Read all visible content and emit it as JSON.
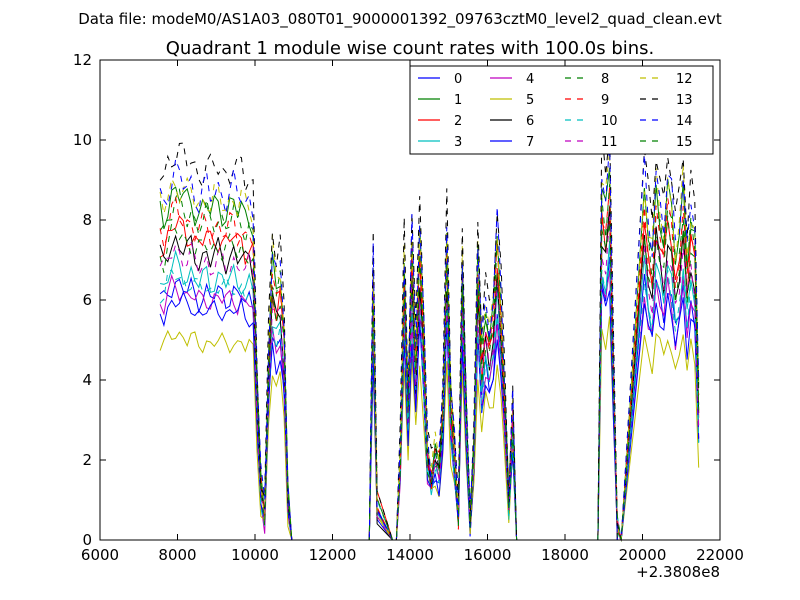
{
  "chart_data": {
    "type": "line",
    "suptitle": "Data file: modeM0/AS1A03_080T01_9000001392_09763cztM0_level2_quad_clean.evt",
    "title": "Quadrant 1 module wise count rates with 100.0s bins.",
    "xlabel": "",
    "ylabel": "",
    "xlim": [
      6000,
      22000
    ],
    "ylim": [
      0,
      12
    ],
    "x_offset_label": "+2.3808e8",
    "xticks": [
      "6000",
      "8000",
      "10000",
      "12000",
      "14000",
      "16000",
      "18000",
      "20000",
      "22000"
    ],
    "yticks": [
      "0",
      "2",
      "4",
      "6",
      "8",
      "10",
      "12"
    ],
    "legend_position": "upper-right",
    "legend_columns": 4,
    "x": [
      7550,
      7650,
      7750,
      7850,
      7950,
      8050,
      8150,
      8250,
      8350,
      8450,
      8550,
      8650,
      8750,
      8850,
      8950,
      9050,
      9150,
      9250,
      9350,
      9450,
      9550,
      9650,
      9750,
      9850,
      9950,
      10050,
      10150,
      10250,
      10350,
      10450,
      10550,
      10650,
      10750,
      10850,
      10950,
      11050,
      11150,
      12950,
      13050,
      13150,
      13550,
      13650,
      13750,
      13850,
      13950,
      14050,
      14150,
      14250,
      14350,
      14450,
      14550,
      14650,
      14750,
      14850,
      14950,
      15050,
      15150,
      15250,
      15350,
      15450,
      15550,
      15650,
      15750,
      15850,
      15950,
      16050,
      16150,
      16250,
      16350,
      16450,
      16550,
      16650,
      16750,
      16850,
      16950,
      18850,
      18950,
      19050,
      19150,
      19250,
      19350,
      19450,
      20050,
      20150,
      20250,
      20350,
      20450,
      20550,
      20650,
      20750,
      20850,
      20950,
      21050,
      21150,
      21250,
      21350,
      21450
    ],
    "base_profile": [
      7.0,
      6.9,
      7.2,
      7.4,
      7.5,
      7.4,
      7.3,
      7.2,
      7.3,
      7.1,
      7.0,
      7.1,
      7.2,
      7.0,
      7.1,
      7.2,
      7.1,
      7.0,
      7.1,
      7.2,
      7.0,
      7.1,
      6.9,
      7.0,
      6.8,
      3.5,
      1.2,
      0.6,
      4.0,
      6.0,
      5.5,
      5.8,
      4.5,
      0.9,
      0.0,
      0.0,
      0.0,
      0.0,
      6.0,
      0.8,
      0.0,
      0.0,
      2.0,
      6.0,
      3.0,
      6.5,
      4.0,
      6.5,
      4.5,
      2.0,
      1.5,
      2.0,
      1.7,
      3.0,
      6.5,
      3.0,
      2.0,
      0.6,
      6.0,
      3.0,
      0.4,
      2.0,
      6.0,
      4.0,
      5.0,
      4.5,
      5.0,
      6.5,
      5.0,
      3.0,
      0.8,
      3.0,
      0.0,
      0.0,
      0.0,
      0.0,
      7.5,
      7.0,
      8.0,
      4.0,
      0.3,
      0.0,
      7.5,
      6.5,
      6.0,
      7.5,
      7.0,
      6.5,
      7.5,
      7.0,
      6.0,
      6.5,
      7.5,
      6.0,
      7.0,
      6.5,
      3.0
    ],
    "series": [
      {
        "name": "0",
        "color": "#0000ff",
        "style": "solid",
        "level": 6.2,
        "amp": 0.85
      },
      {
        "name": "1",
        "color": "#008000",
        "style": "solid",
        "level": 8.4,
        "amp": 1.15
      },
      {
        "name": "2",
        "color": "#ff0000",
        "style": "solid",
        "level": 7.6,
        "amp": 1.05
      },
      {
        "name": "3",
        "color": "#00bfbf",
        "style": "solid",
        "level": 6.6,
        "amp": 0.92
      },
      {
        "name": "4",
        "color": "#bf00bf",
        "style": "solid",
        "level": 6.1,
        "amp": 0.88
      },
      {
        "name": "5",
        "color": "#bfbf00",
        "style": "solid",
        "level": 5.0,
        "amp": 0.72
      },
      {
        "name": "6",
        "color": "#000000",
        "style": "solid",
        "level": 7.2,
        "amp": 1.0
      },
      {
        "name": "7",
        "color": "#0000ff",
        "style": "solid",
        "level": 5.8,
        "amp": 0.84
      },
      {
        "name": "8",
        "color": "#008000",
        "style": "dashed",
        "level": 8.1,
        "amp": 1.1
      },
      {
        "name": "9",
        "color": "#ff0000",
        "style": "dashed",
        "level": 7.9,
        "amp": 1.08
      },
      {
        "name": "10",
        "color": "#00bfbf",
        "style": "dashed",
        "level": 6.4,
        "amp": 0.9
      },
      {
        "name": "11",
        "color": "#bf00bf",
        "style": "dashed",
        "level": 7.0,
        "amp": 0.98
      },
      {
        "name": "12",
        "color": "#bfbf00",
        "style": "dashed",
        "level": 8.6,
        "amp": 1.2
      },
      {
        "name": "13",
        "color": "#000000",
        "style": "dashed",
        "level": 9.4,
        "amp": 1.3
      },
      {
        "name": "14",
        "color": "#0000ff",
        "style": "dashed",
        "level": 8.8,
        "amp": 1.22
      },
      {
        "name": "15",
        "color": "#008000",
        "style": "dashed",
        "level": 7.4,
        "amp": 1.03
      }
    ]
  }
}
